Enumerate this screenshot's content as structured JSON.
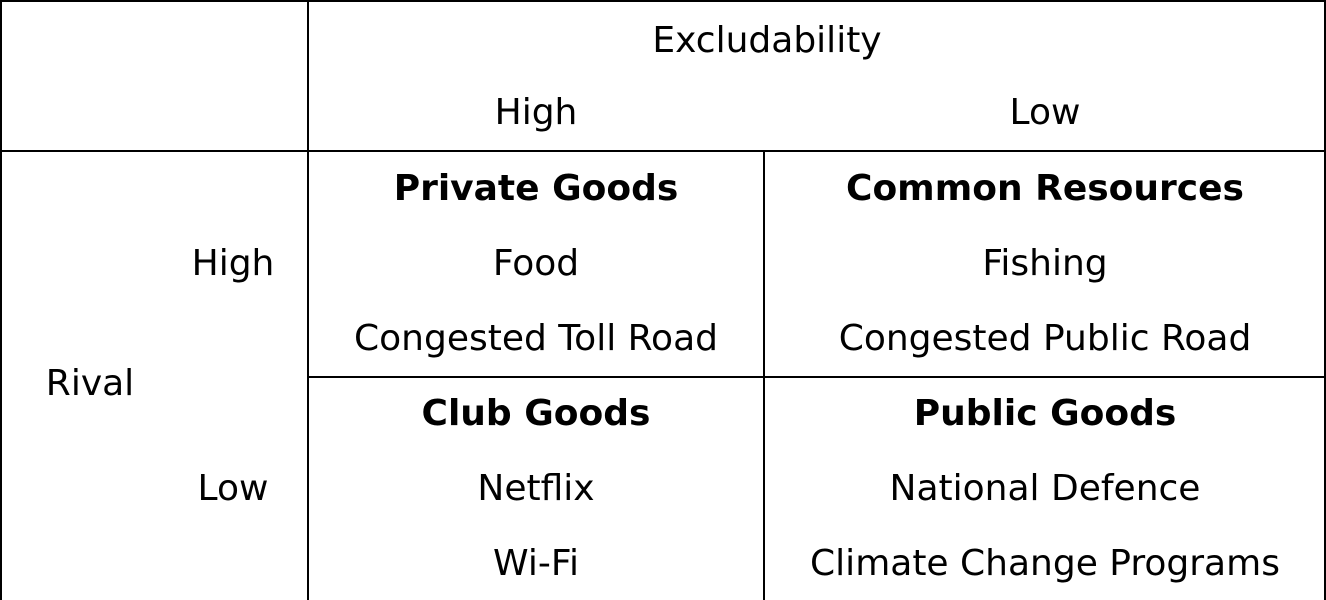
{
  "header": {
    "excludability_label": "Excludability",
    "excl_high": "High",
    "excl_low": "Low"
  },
  "rows": {
    "rival_label": "Rival",
    "rival_high": "High",
    "rival_low": "Low"
  },
  "cells": {
    "private_goods": {
      "title": "Private Goods",
      "examples": [
        "Food",
        "Congested Toll Road"
      ]
    },
    "common_resources": {
      "title": "Common Resources",
      "examples": [
        "Fishing",
        "Congested Public Road"
      ]
    },
    "club_goods": {
      "title": "Club Goods",
      "examples": [
        "Netflix",
        "Wi-Fi"
      ]
    },
    "public_goods": {
      "title": "Public Goods",
      "examples": [
        "National Defence",
        "Climate Change Programs"
      ]
    }
  }
}
